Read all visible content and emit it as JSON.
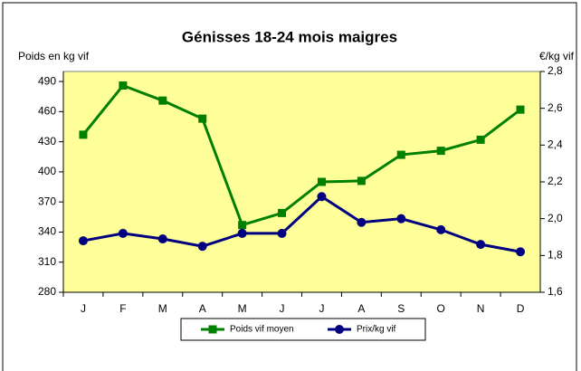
{
  "chart_data": {
    "type": "line",
    "title": "Génisses 18-24 mois maigres",
    "ylabel": "Poids en kg vif",
    "y2label": "€/kg vif",
    "categories": [
      "J",
      "F",
      "M",
      "A",
      "M",
      "J",
      "J",
      "A",
      "S",
      "O",
      "N",
      "D"
    ],
    "series": [
      {
        "name": "Poids vif moyen",
        "color": "#008000",
        "marker": "square",
        "values": [
          437,
          486,
          471,
          453,
          347,
          359,
          390,
          391,
          417,
          421,
          432,
          462
        ]
      },
      {
        "name": "Prix/kg vif",
        "color": "#000080",
        "marker": "circle",
        "axis": "y2",
        "values": [
          1.88,
          1.92,
          1.89,
          1.85,
          1.92,
          1.92,
          2.12,
          1.98,
          2.0,
          1.94,
          1.86,
          1.82
        ]
      }
    ],
    "ylim": [
      280,
      500
    ],
    "yticks": [
      280,
      310,
      340,
      370,
      400,
      430,
      460,
      490
    ],
    "y2lim": [
      1.6,
      2.8
    ],
    "y2ticks": [
      {
        "value": 1.6,
        "label": "1,6"
      },
      {
        "value": 1.8,
        "label": "1,8"
      },
      {
        "value": 2.0,
        "label": "2,0"
      },
      {
        "value": 2.2,
        "label": "2,2"
      },
      {
        "value": 2.4,
        "label": "2,4"
      },
      {
        "value": 2.6,
        "label": "2,6"
      },
      {
        "value": 2.8,
        "label": "2,8"
      }
    ],
    "legend": "bottom"
  }
}
